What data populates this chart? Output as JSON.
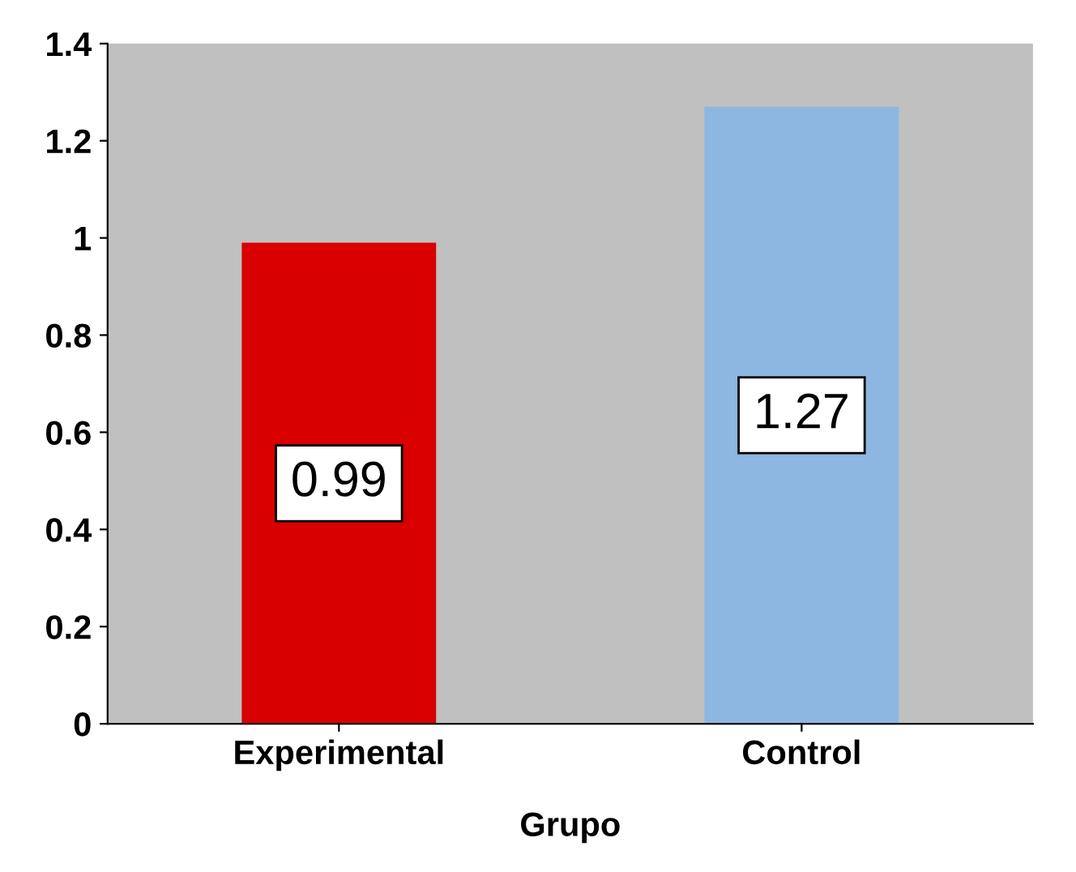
{
  "chart_data": {
    "type": "bar",
    "xlabel": "Grupo",
    "categories": [
      "Experimental",
      "Control"
    ],
    "values": [
      0.99,
      1.27
    ],
    "colors": [
      "#d80000",
      "#8db6e0"
    ],
    "ylim": [
      0,
      1.4
    ],
    "yticks": [
      0,
      0.2,
      0.4,
      0.6,
      0.8,
      1,
      1.2,
      1.4
    ],
    "grid": false,
    "data_labels": true
  }
}
